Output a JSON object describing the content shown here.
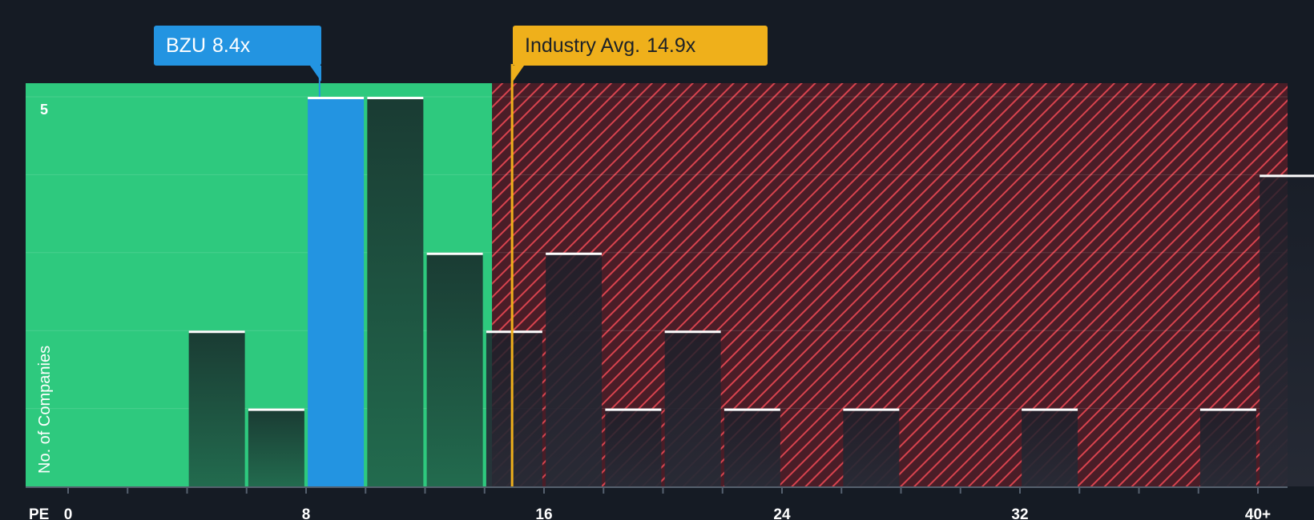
{
  "chart_data": {
    "type": "histogram",
    "metric_label": "PE",
    "ylabel": "No. of Companies",
    "ylim": [
      0,
      5
    ],
    "y_ticks": [
      5
    ],
    "x_ticks": [
      "0",
      "8",
      "16",
      "24",
      "32",
      "40+"
    ],
    "bins": [
      {
        "center": 5,
        "count": 2
      },
      {
        "center": 7,
        "count": 1
      },
      {
        "center": 9,
        "count": 5,
        "highlight": true
      },
      {
        "center": 11,
        "count": 5
      },
      {
        "center": 13,
        "count": 3
      },
      {
        "center": 15,
        "count": 2
      },
      {
        "center": 17,
        "count": 3
      },
      {
        "center": 19,
        "count": 1
      },
      {
        "center": 21,
        "count": 2
      },
      {
        "center": 23,
        "count": 1
      },
      {
        "center": 27,
        "count": 1
      },
      {
        "center": 33,
        "count": 1
      },
      {
        "center": 39,
        "count": 1
      },
      {
        "center": 41,
        "count": 4
      }
    ],
    "company": {
      "name": "BZU",
      "value": 8.4,
      "value_label": "8.4x"
    },
    "industry": {
      "name": "Industry Avg.",
      "value": 14.9,
      "value_label": "14.9x"
    },
    "colors": {
      "background": "#151b24",
      "fair_zone": "#2ec97e",
      "over_zone": "#8a2d35",
      "hatch": "#d8434e",
      "company": "#2394e1",
      "industry": "#efb01b"
    }
  }
}
